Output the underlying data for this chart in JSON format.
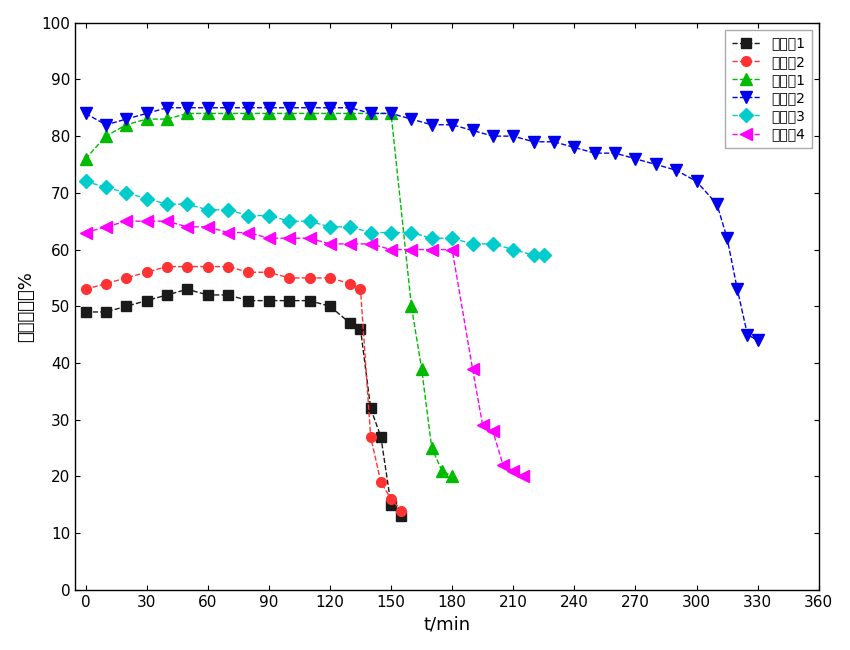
{
  "title": "",
  "xlabel": "t/min",
  "ylabel": "甲烷转化率%",
  "xlim": [
    -5,
    360
  ],
  "ylim": [
    0,
    100
  ],
  "xticks": [
    0,
    30,
    60,
    90,
    120,
    150,
    180,
    210,
    240,
    270,
    300,
    330,
    360
  ],
  "yticks": [
    0,
    10,
    20,
    30,
    40,
    50,
    60,
    70,
    80,
    90,
    100
  ],
  "series": [
    {
      "label": "对比例1",
      "color": "#1a1a1a",
      "marker": "s",
      "markersize": 7,
      "linewidth": 1.0,
      "linestyle": "--",
      "x": [
        0,
        10,
        20,
        30,
        40,
        50,
        60,
        70,
        80,
        90,
        100,
        110,
        120,
        130,
        135,
        140,
        145,
        150,
        155
      ],
      "y": [
        49,
        49,
        50,
        51,
        52,
        53,
        52,
        52,
        51,
        51,
        51,
        51,
        50,
        47,
        46,
        32,
        27,
        15,
        13
      ]
    },
    {
      "label": "对比例2",
      "color": "#ff3333",
      "marker": "o",
      "markersize": 7,
      "linewidth": 1.0,
      "linestyle": "--",
      "x": [
        0,
        10,
        20,
        30,
        40,
        50,
        60,
        70,
        80,
        90,
        100,
        110,
        120,
        130,
        135,
        140,
        145,
        150,
        155
      ],
      "y": [
        53,
        54,
        55,
        56,
        57,
        57,
        57,
        57,
        56,
        56,
        55,
        55,
        55,
        54,
        53,
        27,
        19,
        16,
        14
      ]
    },
    {
      "label": "实施例1",
      "color": "#00bb00",
      "marker": "^",
      "markersize": 8,
      "linewidth": 1.0,
      "linestyle": "--",
      "x": [
        0,
        10,
        20,
        30,
        40,
        50,
        60,
        70,
        80,
        90,
        100,
        110,
        120,
        130,
        140,
        150,
        160,
        165,
        170,
        175,
        180
      ],
      "y": [
        76,
        80,
        82,
        83,
        83,
        84,
        84,
        84,
        84,
        84,
        84,
        84,
        84,
        84,
        84,
        84,
        50,
        39,
        25,
        21,
        20
      ]
    },
    {
      "label": "实施例2",
      "color": "#0000ee",
      "marker": "v",
      "markersize": 8,
      "linewidth": 1.0,
      "linestyle": "--",
      "x": [
        0,
        10,
        20,
        30,
        40,
        50,
        60,
        70,
        80,
        90,
        100,
        110,
        120,
        130,
        140,
        150,
        160,
        170,
        180,
        190,
        200,
        210,
        220,
        230,
        240,
        250,
        260,
        270,
        280,
        290,
        300,
        310,
        315,
        320,
        325,
        330
      ],
      "y": [
        84,
        82,
        83,
        84,
        85,
        85,
        85,
        85,
        85,
        85,
        85,
        85,
        85,
        85,
        84,
        84,
        83,
        82,
        82,
        81,
        80,
        80,
        79,
        79,
        78,
        77,
        77,
        76,
        75,
        74,
        72,
        68,
        62,
        53,
        45,
        44
      ]
    },
    {
      "label": "实施例3",
      "color": "#00cccc",
      "marker": "D",
      "markersize": 7,
      "linewidth": 1.0,
      "linestyle": "--",
      "x": [
        0,
        10,
        20,
        30,
        40,
        50,
        60,
        70,
        80,
        90,
        100,
        110,
        120,
        130,
        140,
        150,
        160,
        170,
        180,
        190,
        200,
        210,
        220,
        225
      ],
      "y": [
        72,
        71,
        70,
        69,
        68,
        68,
        67,
        67,
        66,
        66,
        65,
        65,
        64,
        64,
        63,
        63,
        63,
        62,
        62,
        61,
        61,
        60,
        59,
        59
      ]
    },
    {
      "label": "实施例4",
      "color": "#ff00ff",
      "marker": "<",
      "markersize": 8,
      "linewidth": 1.0,
      "linestyle": "--",
      "x": [
        0,
        10,
        20,
        30,
        40,
        50,
        60,
        70,
        80,
        90,
        100,
        110,
        120,
        130,
        140,
        150,
        160,
        170,
        180,
        190,
        195,
        200,
        205,
        210,
        215
      ],
      "y": [
        63,
        64,
        65,
        65,
        65,
        64,
        64,
        63,
        63,
        62,
        62,
        62,
        61,
        61,
        61,
        60,
        60,
        60,
        60,
        39,
        29,
        28,
        22,
        21,
        20
      ]
    }
  ],
  "legend_loc": "upper right",
  "background_color": "#ffffff",
  "figsize": [
    8.5,
    6.5
  ],
  "dpi": 100
}
